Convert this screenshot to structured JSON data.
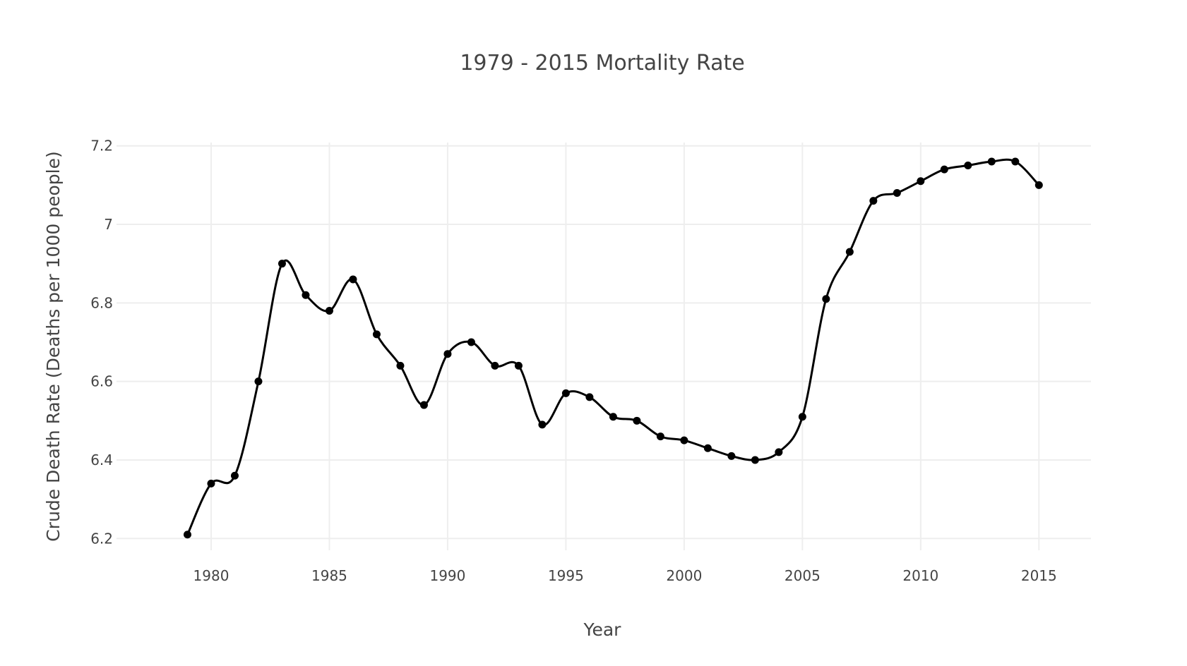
{
  "chart_data": {
    "type": "line",
    "title": "1979 - 2015 Mortality Rate",
    "xlabel": "Year",
    "ylabel": "Crude Death Rate (Deaths per 1000 people)",
    "xlim": [
      1976,
      2017.2
    ],
    "ylim": [
      6.17,
      7.23
    ],
    "x_ticks": [
      1980,
      1985,
      1990,
      1995,
      2000,
      2005,
      2010,
      2015
    ],
    "y_ticks": [
      6.2,
      6.4,
      6.6,
      6.8,
      7,
      7.2
    ],
    "y_tick_labels": [
      "6.2",
      "6.4",
      "6.6",
      "6.8",
      "7",
      "7.2"
    ],
    "grid": true,
    "line_shape": "spline",
    "series": [
      {
        "color": "#000000",
        "x": [
          1979,
          1980,
          1981,
          1982,
          1983,
          1984,
          1985,
          1986,
          1987,
          1988,
          1989,
          1990,
          1991,
          1992,
          1993,
          1994,
          1995,
          1996,
          1997,
          1998,
          1999,
          2000,
          2001,
          2002,
          2003,
          2004,
          2005,
          2006,
          2007,
          2008,
          2009,
          2010,
          2011,
          2012,
          2013,
          2014,
          2015
        ],
        "y": [
          6.21,
          6.34,
          6.36,
          6.6,
          6.9,
          6.82,
          6.78,
          6.86,
          6.72,
          6.64,
          6.54,
          6.67,
          6.7,
          6.64,
          6.64,
          6.49,
          6.57,
          6.56,
          6.51,
          6.5,
          6.46,
          6.45,
          6.43,
          6.41,
          6.4,
          6.42,
          6.51,
          6.81,
          6.93,
          7.06,
          7.08,
          7.11,
          7.14,
          7.15,
          7.16,
          7.16,
          7.1
        ]
      }
    ]
  }
}
